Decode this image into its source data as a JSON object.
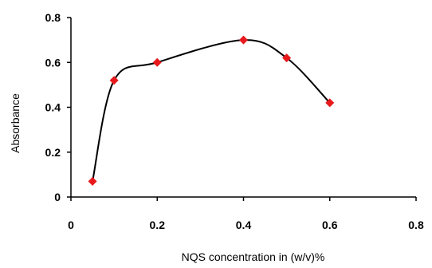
{
  "chart_data": {
    "type": "line",
    "title": "",
    "xlabel": "NQS concentration in (w/v)%",
    "ylabel": "Absorbance",
    "x": [
      0.05,
      0.1,
      0.2,
      0.4,
      0.5,
      0.6
    ],
    "series": [
      {
        "values": [
          0.07,
          0.52,
          0.6,
          0.7,
          0.62,
          0.42
        ],
        "line_color": "#000000",
        "marker": "diamond",
        "marker_color": "#e8191d"
      }
    ],
    "xlim": [
      0,
      0.8
    ],
    "ylim": [
      0,
      0.8
    ],
    "x_ticks": [
      0,
      0.2,
      0.4,
      0.6,
      0.8
    ],
    "x_tick_labels": [
      "0",
      "0.2",
      "0.4",
      "0.6",
      "0.8"
    ],
    "y_ticks": [
      0,
      0.2,
      0.4,
      0.6,
      0.8
    ],
    "y_tick_labels": [
      "0",
      "0.2",
      "0.4",
      "0.6",
      "0.8"
    ],
    "grid": false,
    "smooth": true
  }
}
